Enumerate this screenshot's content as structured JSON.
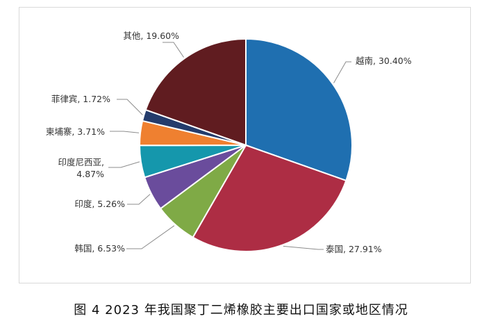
{
  "figure": {
    "caption": "图 4 2023 年我国聚丁二烯橡胶主要出口国家或地区情况"
  },
  "chart_data": {
    "type": "pie",
    "title": "",
    "start": "top",
    "direction": "clockwise",
    "slices": [
      {
        "name": "越南",
        "value": 30.4,
        "label": "越南, 30.40%",
        "color": "#1f6fb0"
      },
      {
        "name": "泰国",
        "value": 27.91,
        "label": "泰国, 27.91%",
        "color": "#ad2d44"
      },
      {
        "name": "韩国",
        "value": 6.53,
        "label": "韩国, 6.53%",
        "color": "#7faa46"
      },
      {
        "name": "印度",
        "value": 5.26,
        "label": "印度, 5.26%",
        "color": "#6a4c9c"
      },
      {
        "name": "印度尼西亚",
        "value": 4.87,
        "label_lines": [
          "印度尼西亚,",
          "4.87%"
        ],
        "color": "#1597ac"
      },
      {
        "name": "柬埔寨",
        "value": 3.71,
        "label": "柬埔寨, 3.71%",
        "color": "#ef8030"
      },
      {
        "name": "菲律宾",
        "value": 1.72,
        "label": "菲律宾, 1.72%",
        "color": "#243c6c"
      },
      {
        "name": "其他",
        "value": 19.6,
        "label": "其他, 19.60%",
        "color": "#601c20"
      }
    ]
  }
}
